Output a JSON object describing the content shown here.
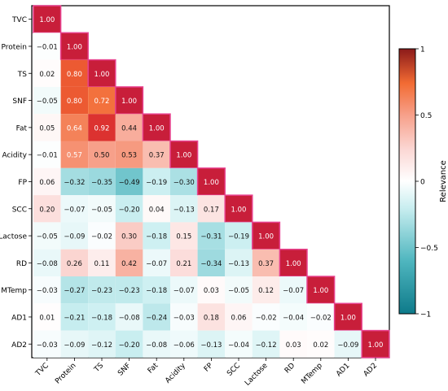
{
  "chart_data": {
    "type": "heatmap",
    "title": "",
    "variables": [
      "TVC",
      "Protein",
      "TS",
      "SNF",
      "Fat",
      "Acidity",
      "FP",
      "SCC",
      "Lactose",
      "RD",
      "MTemp",
      "AD1",
      "AD2"
    ],
    "matrix_lower": [
      [
        1.0
      ],
      [
        -0.01,
        1.0
      ],
      [
        0.02,
        0.8,
        1.0
      ],
      [
        -0.05,
        0.8,
        0.72,
        1.0
      ],
      [
        0.05,
        0.64,
        0.92,
        0.44,
        1.0
      ],
      [
        -0.01,
        0.57,
        0.5,
        0.53,
        0.37,
        1.0
      ],
      [
        0.06,
        -0.32,
        -0.35,
        -0.49,
        -0.19,
        -0.3,
        1.0
      ],
      [
        0.2,
        -0.07,
        -0.05,
        -0.2,
        0.04,
        -0.13,
        0.17,
        1.0
      ],
      [
        -0.05,
        -0.09,
        -0.02,
        0.3,
        -0.18,
        0.15,
        -0.31,
        -0.19,
        1.0
      ],
      [
        -0.08,
        0.26,
        0.11,
        0.42,
        -0.07,
        0.21,
        -0.34,
        -0.13,
        0.37,
        1.0
      ],
      [
        -0.03,
        -0.27,
        -0.23,
        -0.23,
        -0.18,
        -0.07,
        0.03,
        -0.05,
        0.12,
        -0.07,
        1.0
      ],
      [
        0.01,
        -0.21,
        -0.18,
        -0.08,
        -0.24,
        -0.03,
        0.18,
        0.06,
        -0.02,
        -0.04,
        -0.02,
        1.0
      ],
      [
        -0.03,
        -0.09,
        -0.12,
        -0.2,
        -0.08,
        -0.06,
        -0.13,
        -0.04,
        -0.12,
        0.03,
        0.02,
        -0.09,
        1.0
      ]
    ],
    "colorbar": {
      "label": "Relevance",
      "range": [
        -1,
        1
      ],
      "ticks": [
        -1,
        -0.5,
        0,
        0.5,
        1
      ],
      "tick_labels": [
        "−1",
        "−0.5",
        "0",
        "0.5",
        "1"
      ]
    },
    "colors": {
      "negative_end": "#0e7a8a",
      "mid": "#ffffff",
      "positive_mid": "#f26b33",
      "positive_end": "#8b1a1a",
      "cell_edge": "#e8428f"
    }
  }
}
